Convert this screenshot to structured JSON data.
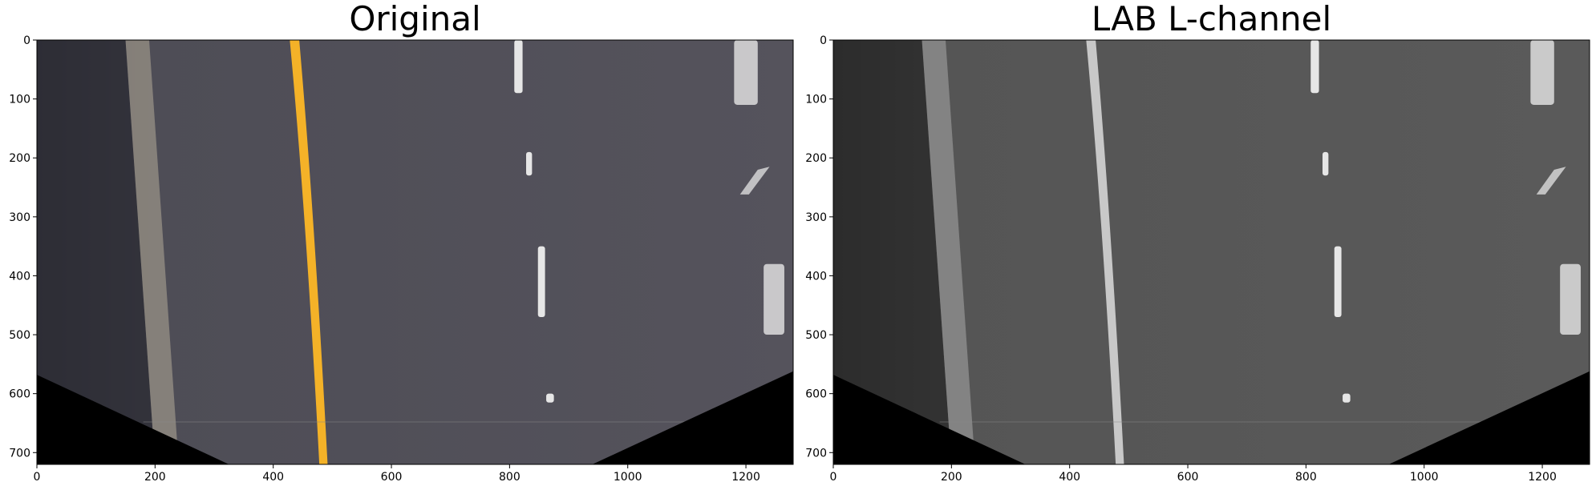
{
  "figure": {
    "panels": [
      {
        "title": "Original"
      },
      {
        "title": "LAB L-channel"
      }
    ]
  },
  "chart_data": [
    {
      "type": "image",
      "title": "Original",
      "colormap": "rgb",
      "xlim": [
        0,
        1280
      ],
      "ylim": [
        720,
        0
      ],
      "xticks": [
        0,
        200,
        400,
        600,
        800,
        1000,
        1200
      ],
      "yticks": [
        0,
        100,
        200,
        300,
        400,
        500,
        600,
        700
      ],
      "colors": {
        "road": "#4e4d56",
        "yellow_line": "#f4b228",
        "white_line": "#e6e6e6",
        "mask": "#000000",
        "shoulder": "#8f8a80"
      }
    },
    {
      "type": "image",
      "title": "LAB L-channel",
      "colormap": "gray",
      "xlim": [
        0,
        1280
      ],
      "ylim": [
        720,
        0
      ],
      "xticks": [
        0,
        200,
        400,
        600,
        800,
        1000,
        1200
      ],
      "yticks": [
        0,
        100,
        200,
        300,
        400,
        500,
        600,
        700
      ],
      "colors": {
        "road": "#555555",
        "yellow_line": "#c8c8c8",
        "white_line": "#e6e6e6",
        "mask": "#000000",
        "shoulder": "#8c8c8c"
      }
    }
  ]
}
